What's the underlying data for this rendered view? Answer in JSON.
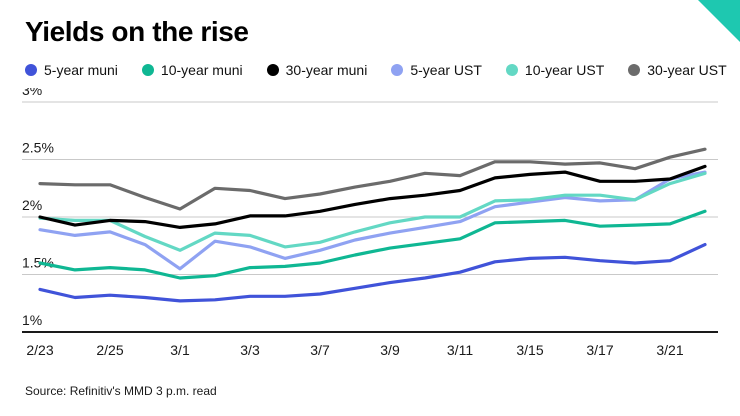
{
  "title": "Yields on the rise",
  "source": "Source: Refinitiv's MMD 3 p.m. read",
  "accent_color": "#1EC8B0",
  "chart_data": {
    "type": "line",
    "title": "Yields on the rise",
    "xlabel": "",
    "ylabel": "",
    "ylim": [
      1,
      3
    ],
    "yticks": [
      1,
      1.5,
      2,
      2.5,
      3
    ],
    "ytick_labels": [
      "1%",
      "1.5%",
      "2%",
      "2.5%",
      "3%"
    ],
    "x_labels": [
      "2/23",
      "2/25",
      "3/1",
      "3/3",
      "3/7",
      "3/9",
      "3/11",
      "3/15",
      "3/17",
      "3/21"
    ],
    "x_label_indices": [
      0,
      2,
      4,
      6,
      8,
      10,
      12,
      14,
      16,
      18
    ],
    "n_points": 20,
    "grid": "horizontal",
    "legend_position": "top",
    "axis_color": "#1a1a1a",
    "grid_color": "#c9c9c9",
    "series": [
      {
        "name": "5-year muni",
        "color": "#4053D9",
        "values": [
          1.37,
          1.3,
          1.32,
          1.3,
          1.27,
          1.28,
          1.31,
          1.31,
          1.33,
          1.38,
          1.43,
          1.47,
          1.52,
          1.61,
          1.64,
          1.65,
          1.62,
          1.6,
          1.62,
          1.76
        ]
      },
      {
        "name": "10-year muni",
        "color": "#0FB793",
        "values": [
          1.6,
          1.54,
          1.56,
          1.54,
          1.47,
          1.49,
          1.56,
          1.57,
          1.6,
          1.67,
          1.73,
          1.77,
          1.81,
          1.95,
          1.96,
          1.97,
          1.92,
          1.93,
          1.94,
          2.05
        ]
      },
      {
        "name": "30-year muni",
        "color": "#000000",
        "values": [
          2.0,
          1.93,
          1.97,
          1.96,
          1.91,
          1.94,
          2.01,
          2.01,
          2.05,
          2.11,
          2.16,
          2.19,
          2.23,
          2.34,
          2.37,
          2.39,
          2.31,
          2.31,
          2.33,
          2.44
        ]
      },
      {
        "name": "5-year UST",
        "color": "#8FA2F2",
        "values": [
          1.89,
          1.84,
          1.87,
          1.76,
          1.55,
          1.79,
          1.74,
          1.64,
          1.71,
          1.8,
          1.86,
          1.91,
          1.96,
          2.09,
          2.13,
          2.17,
          2.14,
          2.15,
          2.33,
          2.39
        ]
      },
      {
        "name": "10-year UST",
        "color": "#63D8C4",
        "values": [
          1.99,
          1.97,
          1.97,
          1.83,
          1.71,
          1.86,
          1.84,
          1.74,
          1.78,
          1.87,
          1.95,
          2.0,
          2.0,
          2.14,
          2.15,
          2.19,
          2.19,
          2.15,
          2.29,
          2.38
        ]
      },
      {
        "name": "30-year UST",
        "color": "#6B6B6B",
        "values": [
          2.29,
          2.28,
          2.28,
          2.17,
          2.07,
          2.25,
          2.23,
          2.16,
          2.2,
          2.26,
          2.31,
          2.38,
          2.36,
          2.48,
          2.48,
          2.46,
          2.47,
          2.42,
          2.52,
          2.59
        ]
      }
    ]
  }
}
